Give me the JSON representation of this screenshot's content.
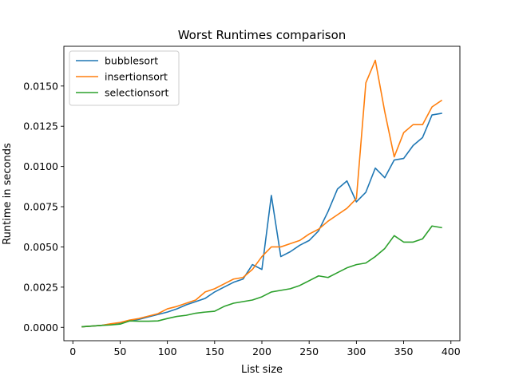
{
  "chart_data": {
    "type": "line",
    "title": "Worst Runtimes comparison",
    "xlabel": "List size",
    "ylabel": "Runtime in seconds",
    "xlim": [
      -9.5,
      409.5
    ],
    "ylim": [
      -0.00083,
      0.01747
    ],
    "xticks": [
      0,
      50,
      100,
      150,
      200,
      250,
      300,
      350,
      400
    ],
    "yticks": [
      0.0,
      0.0025,
      0.005,
      0.0075,
      0.01,
      0.0125,
      0.015
    ],
    "xtick_labels": [
      "0",
      "50",
      "100",
      "150",
      "200",
      "250",
      "300",
      "350",
      "400"
    ],
    "ytick_labels": [
      "0.0000",
      "0.0025",
      "0.0050",
      "0.0075",
      "0.0100",
      "0.0125",
      "0.0150"
    ],
    "grid": false,
    "legend_position": "top-left",
    "x": [
      10,
      20,
      30,
      40,
      50,
      60,
      70,
      80,
      90,
      100,
      110,
      120,
      130,
      140,
      150,
      160,
      170,
      180,
      190,
      200,
      210,
      220,
      230,
      240,
      250,
      260,
      270,
      280,
      290,
      300,
      310,
      320,
      330,
      340,
      350,
      360,
      370,
      380,
      390
    ],
    "series": [
      {
        "name": "bubblesort",
        "color": "#1f77b4",
        "values": [
          4e-05,
          8e-05,
          0.00012,
          0.0002,
          0.00028,
          0.0004,
          0.0005,
          0.00065,
          0.0008,
          0.00095,
          0.00115,
          0.0014,
          0.0016,
          0.0018,
          0.0022,
          0.0025,
          0.0028,
          0.003,
          0.0039,
          0.0036,
          0.0082,
          0.0044,
          0.0047,
          0.0051,
          0.0054,
          0.006,
          0.0072,
          0.0086,
          0.0091,
          0.0078,
          0.0084,
          0.0099,
          0.0093,
          0.0104,
          0.0105,
          0.0113,
          0.0118,
          0.0132,
          0.0133
        ]
      },
      {
        "name": "insertionsort",
        "color": "#ff7f0e",
        "values": [
          4e-05,
          8e-05,
          0.00012,
          0.00022,
          0.0003,
          0.00045,
          0.00055,
          0.0007,
          0.00085,
          0.00115,
          0.0013,
          0.0015,
          0.0017,
          0.0022,
          0.0024,
          0.0027,
          0.003,
          0.0031,
          0.0036,
          0.0044,
          0.005,
          0.005,
          0.0052,
          0.0054,
          0.0058,
          0.0061,
          0.0066,
          0.007,
          0.0074,
          0.008,
          0.0152,
          0.0166,
          0.0134,
          0.0106,
          0.0121,
          0.0126,
          0.0126,
          0.0137,
          0.0141
        ]
      },
      {
        "name": "selectionsort",
        "color": "#2ca02c",
        "values": [
          4e-05,
          8e-05,
          0.00012,
          0.00015,
          0.0002,
          0.0004,
          0.00038,
          0.00038,
          0.0004,
          0.00055,
          0.00068,
          0.00075,
          0.00088,
          0.00095,
          0.001,
          0.0013,
          0.0015,
          0.0016,
          0.0017,
          0.0019,
          0.0022,
          0.0023,
          0.0024,
          0.0026,
          0.0029,
          0.0032,
          0.0031,
          0.0034,
          0.0037,
          0.0039,
          0.004,
          0.0044,
          0.0049,
          0.0057,
          0.0053,
          0.0053,
          0.0055,
          0.0063,
          0.0062
        ]
      }
    ]
  }
}
